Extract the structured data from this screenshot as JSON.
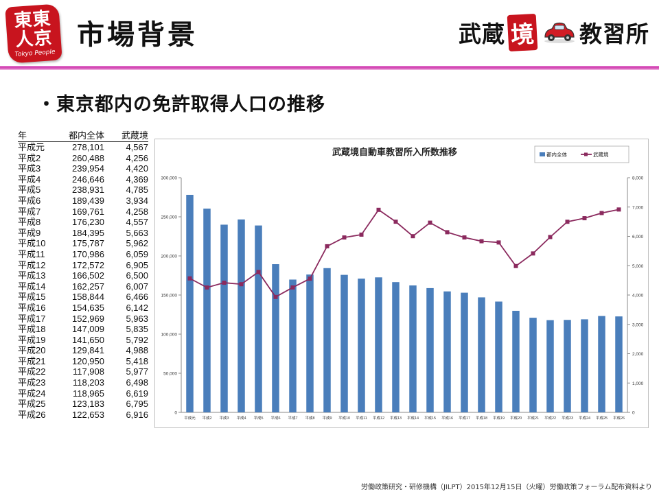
{
  "header": {
    "logo_text_line1": "東東",
    "logo_text_line2": "人京",
    "logo_sub": "Tokyo People",
    "title": "市場背景",
    "brand_left": "武蔵",
    "brand_kyo": "境",
    "brand_right": "教習所"
  },
  "subheading": "・東京都内の免許取得人口の推移",
  "table": {
    "headers": [
      "年",
      "都内全体",
      "武蔵境"
    ],
    "rows": [
      [
        "平成元",
        "278,101",
        "4,567"
      ],
      [
        "平成2",
        "260,488",
        "4,256"
      ],
      [
        "平成3",
        "239,954",
        "4,420"
      ],
      [
        "平成4",
        "246,646",
        "4,369"
      ],
      [
        "平成5",
        "238,931",
        "4,785"
      ],
      [
        "平成6",
        "189,439",
        "3,934"
      ],
      [
        "平成7",
        "169,761",
        "4,258"
      ],
      [
        "平成8",
        "176,230",
        "4,557"
      ],
      [
        "平成9",
        "184,395",
        "5,663"
      ],
      [
        "平成10",
        "175,787",
        "5,962"
      ],
      [
        "平成11",
        "170,986",
        "6,059"
      ],
      [
        "平成12",
        "172,572",
        "6,905"
      ],
      [
        "平成13",
        "166,502",
        "6,500"
      ],
      [
        "平成14",
        "162,257",
        "6,007"
      ],
      [
        "平成15",
        "158,844",
        "6,466"
      ],
      [
        "平成16",
        "154,635",
        "6,142"
      ],
      [
        "平成17",
        "152,969",
        "5,963"
      ],
      [
        "平成18",
        "147,009",
        "5,835"
      ],
      [
        "平成19",
        "141,650",
        "5,792"
      ],
      [
        "平成20",
        "129,841",
        "4,988"
      ],
      [
        "平成21",
        "120,950",
        "5,418"
      ],
      [
        "平成22",
        "117,908",
        "5,977"
      ],
      [
        "平成23",
        "118,203",
        "6,498"
      ],
      [
        "平成24",
        "118,965",
        "6,619"
      ],
      [
        "平成25",
        "123,183",
        "6,795"
      ],
      [
        "平成26",
        "122,653",
        "6,916"
      ]
    ]
  },
  "chart_data": {
    "type": "bar",
    "title": "武蔵境自動車教習所入所数推移",
    "categories": [
      "平成元",
      "平成2",
      "平成3",
      "平成4",
      "平成5",
      "平成6",
      "平成7",
      "平成8",
      "平成9",
      "平成10",
      "平成11",
      "平成12",
      "平成13",
      "平成14",
      "平成15",
      "平成16",
      "平成17",
      "平成18",
      "平成19",
      "平成20",
      "平成21",
      "平成22",
      "平成23",
      "平成24",
      "平成25",
      "平成26"
    ],
    "series": [
      {
        "name": "都内全体",
        "type": "bar",
        "axis": "left",
        "color": "#4a7ebb",
        "values": [
          278101,
          260488,
          239954,
          246646,
          238931,
          189439,
          169761,
          176230,
          184395,
          175787,
          170986,
          172572,
          166502,
          162257,
          158844,
          154635,
          152969,
          147009,
          141650,
          129841,
          120950,
          117908,
          118203,
          118965,
          123183,
          122653
        ]
      },
      {
        "name": "武蔵境",
        "type": "line",
        "axis": "right",
        "color": "#8b2a5e",
        "values": [
          4567,
          4256,
          4420,
          4369,
          4785,
          3934,
          4258,
          4557,
          5663,
          5962,
          6059,
          6905,
          6500,
          6007,
          6466,
          6142,
          5963,
          5835,
          5792,
          4988,
          5418,
          5977,
          6498,
          6619,
          6795,
          6916
        ]
      }
    ],
    "ylim_left": [
      0,
      300000
    ],
    "yticks_left": [
      "0",
      "50,000",
      "100,000",
      "150,000",
      "200,000",
      "250,000",
      "300,000"
    ],
    "ylim_right": [
      0,
      8000
    ],
    "yticks_right": [
      "0",
      "1,000",
      "2,000",
      "3,000",
      "4,000",
      "5,000",
      "6,000",
      "7,000",
      "8,000"
    ],
    "legend_position": "top-right",
    "grid": false
  },
  "footer": "労働政策研究・研修機構（JILPT）2015年12月15日（火曜）労働政策フォーラム配布資料より"
}
